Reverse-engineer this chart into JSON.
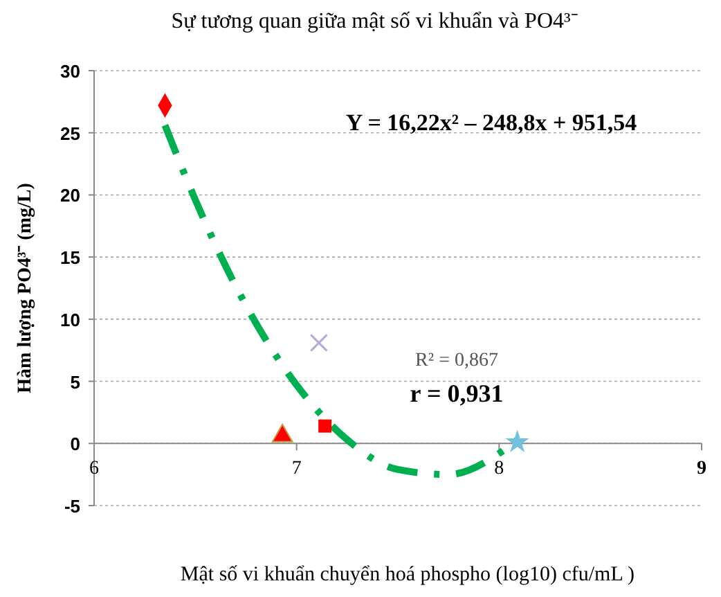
{
  "chart_data": {
    "type": "scatter",
    "title": "Sự tương quan giữa mật số vi khuẩn và PO4³⁻",
    "xlabel": "Mật số vi khuẩn chuyển hoá phospho (log10) cfu/mL )",
    "ylabel": "Hàm lượng PO4³⁻ (mg/L)",
    "annotations": [
      "Y = 16,22x² – 248,8x + 951,54",
      "R² = 0,867",
      "r = 0,931"
    ],
    "xlim": [
      6,
      9
    ],
    "xticks": [
      6,
      7,
      8,
      9
    ],
    "ylim": [
      -5,
      30
    ],
    "yticks": [
      -5,
      0,
      5,
      10,
      15,
      20,
      25,
      30
    ],
    "grid": "y",
    "series": [
      {
        "type": "line",
        "color": "#00b050",
        "line_style": "dashed",
        "marker": "none",
        "x": [
          6.35,
          6.5,
          6.75,
          7.0,
          7.25,
          7.5,
          7.75,
          8.0,
          8.09
        ],
        "values": [
          25.6,
          19.6,
          11.1,
          4.7,
          0.3,
          -2.1,
          -2.5,
          -0.8,
          0.3
        ]
      },
      {
        "color": "#ff0000",
        "marker": "diamond",
        "x": [
          6.35
        ],
        "values": [
          27.2
        ]
      },
      {
        "color": "#ff0000",
        "marker": "triangle",
        "x": [
          6.93
        ],
        "values": [
          0.6
        ]
      },
      {
        "color": "#ff0000",
        "marker": "square",
        "x": [
          7.14
        ],
        "values": [
          1.4
        ]
      },
      {
        "color": "#b8a8d8",
        "marker": "cross",
        "x": [
          7.11
        ],
        "values": [
          8.1
        ]
      },
      {
        "color": "#70c0e0",
        "marker": "star",
        "x": [
          8.09
        ],
        "values": [
          0.1
        ]
      }
    ]
  }
}
